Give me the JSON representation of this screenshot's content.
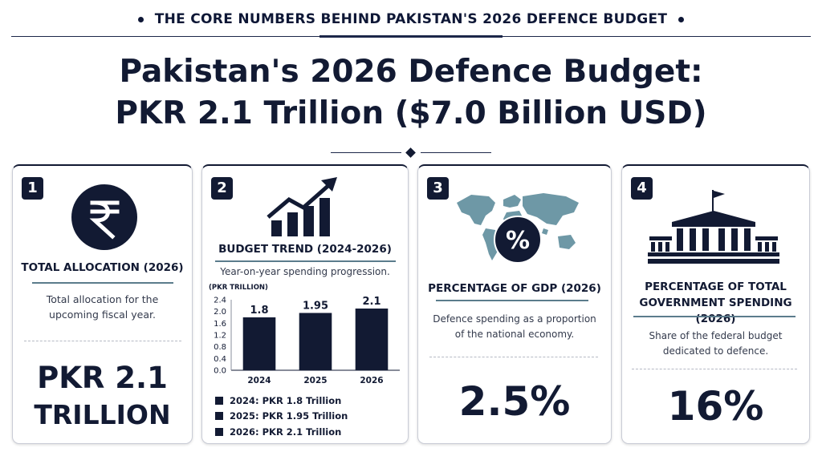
{
  "banner": {
    "text": "THE CORE NUMBERS BEHIND PAKISTAN'S 2026 DEFENCE BUDGET"
  },
  "title": {
    "line1": "Pakistan's 2026 Defence Budget:",
    "line2": "PKR 2.1 Trillion ($7.0 Billion USD)"
  },
  "cards": [
    {
      "number": "1",
      "icon": "rupee-icon",
      "heading": "TOTAL ALLOCATION (2026)",
      "description_line1": "Total allocation for the",
      "description_line2": "upcoming fiscal year.",
      "value_line1": "PKR 2.1",
      "value_line2": "TRILLION"
    },
    {
      "number": "2",
      "icon": "growth-chart-icon",
      "heading": "BUDGET TREND (2024-2026)",
      "description": "Year-on-year spending progression.",
      "legend": [
        "2024: PKR 1.8 Trillion",
        "2025: PKR 1.95 Trillion",
        "2026: PKR 2.1 Trillion"
      ]
    },
    {
      "number": "3",
      "icon": "world-map-percent-icon",
      "icon_symbol": "%",
      "heading": "PERCENTAGE OF GDP (2026)",
      "description_line1": "Defence spending as a proportion",
      "description_line2": "of the national economy.",
      "value": "2.5%"
    },
    {
      "number": "4",
      "icon": "government-building-icon",
      "heading_line1": "PERCENTAGE OF TOTAL",
      "heading_line2": "GOVERNMENT SPENDING (2026)",
      "description_line1": "Share of the federal budget",
      "description_line2": "dedicated to defence.",
      "value": "16%"
    }
  ],
  "chart_data": {
    "type": "bar",
    "ylabel": "(PKR TRILLION)",
    "categories": [
      "2024",
      "2025",
      "2026"
    ],
    "values": [
      1.8,
      1.95,
      2.1
    ],
    "data_labels": [
      "1.8",
      "1.95",
      "2.1"
    ],
    "yticks": [
      "2.4",
      "2.0",
      "1.6",
      "1.2",
      "0.8",
      "0.4",
      "0.0"
    ],
    "ytick_values": [
      2.4,
      2.0,
      1.6,
      1.2,
      0.8,
      0.4,
      0.0
    ],
    "ylim": [
      0,
      2.4
    ],
    "bar_color": "#121a33"
  },
  "colors": {
    "navy": "#121a33",
    "accent": "#5b7c8c",
    "map": "#6e98a6"
  }
}
